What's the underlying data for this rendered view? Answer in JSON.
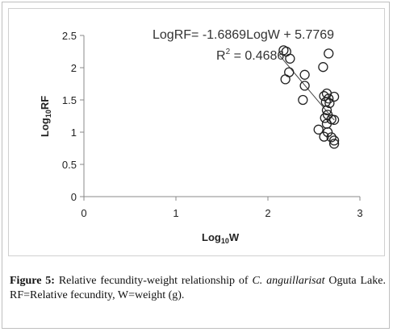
{
  "chart_data": {
    "type": "scatter",
    "title": "",
    "xlabel_main": "Log",
    "xlabel_sub": "10",
    "xlabel_tail": "W",
    "ylabel_main": "Log",
    "ylabel_sub": "10",
    "ylabel_tail": "RF",
    "xlim": [
      0,
      3
    ],
    "ylim": [
      0,
      2.5
    ],
    "x_ticks": [
      "0",
      "1",
      "2",
      "3"
    ],
    "y_ticks": [
      "0",
      "0.5",
      "1",
      "1.5",
      "2",
      "2.5"
    ],
    "equation": "LogRF= -1.6869LogW + 5.7769",
    "r2_label": "R",
    "r2_sup": "2",
    "r2_value": " = 0.4686",
    "trendline": {
      "slope": -1.6869,
      "intercept": 5.7769,
      "x_range": [
        2.13,
        2.72
      ]
    },
    "grid": false,
    "series": [
      {
        "points": [
          [
            2.17,
            2.27
          ],
          [
            2.2,
            2.25
          ],
          [
            2.24,
            2.14
          ],
          [
            2.23,
            1.93
          ],
          [
            2.19,
            1.82
          ],
          [
            2.4,
            1.89
          ],
          [
            2.4,
            1.72
          ],
          [
            2.38,
            1.5
          ],
          [
            2.6,
            2.01
          ],
          [
            2.66,
            2.22
          ],
          [
            2.61,
            1.56
          ],
          [
            2.64,
            1.6
          ],
          [
            2.66,
            1.52
          ],
          [
            2.63,
            1.47
          ],
          [
            2.67,
            1.45
          ],
          [
            2.72,
            1.55
          ],
          [
            2.64,
            1.34
          ],
          [
            2.65,
            1.27
          ],
          [
            2.62,
            1.22
          ],
          [
            2.69,
            1.2
          ],
          [
            2.72,
            1.19
          ],
          [
            2.64,
            1.13
          ],
          [
            2.55,
            1.04
          ],
          [
            2.65,
            1.0
          ],
          [
            2.61,
            0.93
          ],
          [
            2.69,
            0.92
          ],
          [
            2.72,
            0.87
          ],
          [
            2.72,
            0.82
          ]
        ]
      }
    ]
  },
  "caption": {
    "label": "Figure 5:",
    "text1": " Relative fecundity-weight relationship of ",
    "species": "C. anguillarisat",
    "text2": " Oguta Lake. RF=Relative fecundity, W=weight (g)."
  }
}
